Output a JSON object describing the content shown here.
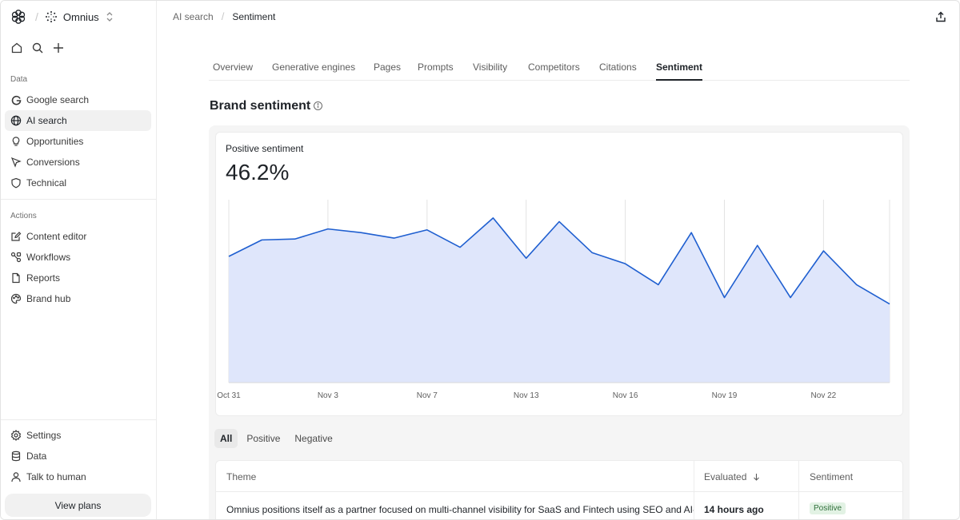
{
  "workspace": {
    "name": "Omnius",
    "logo_icon": "flower-logo-icon",
    "workspace_icon": "dots-circle-icon"
  },
  "sidebar": {
    "sections": [
      {
        "label": "Data",
        "items": [
          {
            "label": "Google search",
            "icon": "google-icon",
            "active": false
          },
          {
            "label": "AI search",
            "icon": "globe-icon",
            "active": true
          },
          {
            "label": "Opportunities",
            "icon": "lightbulb-icon",
            "active": false
          },
          {
            "label": "Conversions",
            "icon": "cursor-icon",
            "active": false
          },
          {
            "label": "Technical",
            "icon": "shield-icon",
            "active": false
          }
        ]
      },
      {
        "label": "Actions",
        "items": [
          {
            "label": "Content editor",
            "icon": "edit-icon",
            "active": false
          },
          {
            "label": "Workflows",
            "icon": "workflow-icon",
            "active": false
          },
          {
            "label": "Reports",
            "icon": "document-icon",
            "active": false
          },
          {
            "label": "Brand hub",
            "icon": "palette-icon",
            "active": false
          }
        ]
      }
    ],
    "bottom_items": [
      {
        "label": "Settings",
        "icon": "gear-icon"
      },
      {
        "label": "Data",
        "icon": "database-icon"
      },
      {
        "label": "Talk to human",
        "icon": "person-icon"
      }
    ],
    "view_plans_label": "View plans"
  },
  "breadcrumb": {
    "parent": "AI search",
    "current": "Sentiment"
  },
  "tabs": [
    "Overview",
    "Generative engines",
    "Pages",
    "Prompts",
    "Visibility",
    "Competitors",
    "Citations",
    "Sentiment"
  ],
  "active_tab": "Sentiment",
  "page": {
    "title": "Brand sentiment"
  },
  "metric": {
    "label": "Positive sentiment",
    "value": "46.2%"
  },
  "chart_data": {
    "type": "area",
    "title": "",
    "xlabel": "",
    "ylabel": "",
    "tick_labels": [
      "Oct 31",
      "Nov 3",
      "Nov 7",
      "Nov 13",
      "Nov 16",
      "Nov 19",
      "Nov 22"
    ],
    "ylim": [
      0,
      100
    ],
    "grid": "vertical",
    "colors": {
      "line": "#1f5fd0",
      "fill": "#dfe6fb"
    },
    "values": [
      69,
      78,
      78.5,
      84,
      82,
      79,
      83.5,
      74,
      90,
      68,
      88,
      71,
      65,
      53.5,
      82,
      46.5,
      75,
      46.5,
      72,
      53.5,
      43
    ]
  },
  "filter": {
    "options": [
      "All",
      "Positive",
      "Negative"
    ],
    "active": "All"
  },
  "table": {
    "columns": [
      "Theme",
      "Evaluated",
      "Sentiment"
    ],
    "rows": [
      {
        "theme": "Omnius positions itself as a partner focused on multi-channel visibility for SaaS and Fintech using SEO and AI-a",
        "evaluated": "14 hours ago",
        "sentiment": "Positive"
      }
    ]
  }
}
